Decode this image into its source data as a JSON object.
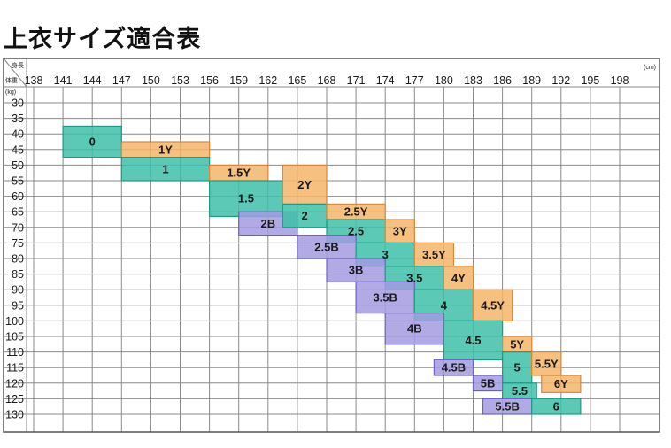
{
  "page": {
    "title": "上衣サイズ適合表"
  },
  "chart_data": {
    "type": "heatmap",
    "title": "上衣サイズ適合表",
    "x_axis": {
      "label_top": "身長",
      "unit": "(cm)",
      "ticks": [
        "138",
        "141",
        "144",
        "147",
        "150",
        "153",
        "156",
        "159",
        "162",
        "165",
        "168",
        "171",
        "174",
        "177",
        "180",
        "183",
        "186",
        "189",
        "192",
        "195",
        "198"
      ],
      "range": [
        138,
        198
      ]
    },
    "y_axis": {
      "label": "体重",
      "unit": "(kg)",
      "ticks": [
        "30",
        "35",
        "40",
        "45",
        "50",
        "55",
        "60",
        "65",
        "70",
        "75",
        "80",
        "85",
        "90",
        "95",
        "100",
        "105",
        "110",
        "115",
        "120",
        "125",
        "130"
      ],
      "range": [
        30,
        130
      ]
    },
    "grid": true,
    "colors": {
      "orange": "#f5b56a",
      "teal": "#3ec0a8",
      "purple": "#a39be0"
    },
    "regions": [
      {
        "label": "0",
        "color": "teal",
        "x": [
          141,
          147
        ],
        "y": [
          37.5,
          47.5
        ]
      },
      {
        "label": "1Y",
        "color": "orange",
        "x": [
          147,
          156
        ],
        "y": [
          42.5,
          47.5
        ]
      },
      {
        "label": "1",
        "color": "teal",
        "x": [
          147,
          156
        ],
        "y": [
          47.5,
          55
        ]
      },
      {
        "label": "1.5Y",
        "color": "orange",
        "x": [
          156,
          162
        ],
        "y": [
          50,
          55
        ]
      },
      {
        "label": "1.5",
        "color": "teal",
        "x": [
          156,
          163.5
        ],
        "y": [
          55,
          66.5
        ]
      },
      {
        "label": "2Y",
        "color": "orange",
        "x": [
          163.5,
          168
        ],
        "y": [
          50,
          62.5
        ]
      },
      {
        "label": "2B",
        "color": "purple",
        "x": [
          159,
          165
        ],
        "y": [
          65,
          72.5
        ]
      },
      {
        "label": "2",
        "color": "teal",
        "x": [
          163.5,
          168
        ],
        "y": [
          62.5,
          70
        ]
      },
      {
        "label": "2.5Y",
        "color": "orange",
        "x": [
          168,
          174
        ],
        "y": [
          62.5,
          67.5
        ]
      },
      {
        "label": "2.5",
        "color": "teal",
        "x": [
          168,
          174
        ],
        "y": [
          67.5,
          75
        ]
      },
      {
        "label": "2.5B",
        "color": "purple",
        "x": [
          165,
          171
        ],
        "y": [
          72.5,
          80
        ]
      },
      {
        "label": "3Y",
        "color": "orange",
        "x": [
          174,
          177
        ],
        "y": [
          67.5,
          75
        ]
      },
      {
        "label": "3",
        "color": "teal",
        "x": [
          171,
          177
        ],
        "y": [
          75,
          82.5
        ]
      },
      {
        "label": "3.5Y",
        "color": "orange",
        "x": [
          177,
          181
        ],
        "y": [
          75,
          82.5
        ]
      },
      {
        "label": "3B",
        "color": "purple",
        "x": [
          168,
          174
        ],
        "y": [
          80,
          87.5
        ]
      },
      {
        "label": "3.5",
        "color": "teal",
        "x": [
          174,
          180
        ],
        "y": [
          82.5,
          90
        ]
      },
      {
        "label": "4Y",
        "color": "orange",
        "x": [
          180,
          183
        ],
        "y": [
          82.5,
          90
        ]
      },
      {
        "label": "3.5B",
        "color": "purple",
        "x": [
          171,
          177
        ],
        "y": [
          87.5,
          97.5
        ]
      },
      {
        "label": "4",
        "color": "teal",
        "x": [
          177,
          183
        ],
        "y": [
          90,
          100
        ]
      },
      {
        "label": "4.5Y",
        "color": "orange",
        "x": [
          183,
          187
        ],
        "y": [
          90,
          100
        ]
      },
      {
        "label": "4B",
        "color": "purple",
        "x": [
          174,
          180
        ],
        "y": [
          97.5,
          107.5
        ]
      },
      {
        "label": "4.5",
        "color": "teal",
        "x": [
          180,
          186
        ],
        "y": [
          100,
          112.5
        ]
      },
      {
        "label": "5Y",
        "color": "orange",
        "x": [
          186,
          189
        ],
        "y": [
          105,
          110
        ]
      },
      {
        "label": "4.5B",
        "color": "purple",
        "x": [
          179,
          183
        ],
        "y": [
          112.5,
          117.5
        ]
      },
      {
        "label": "5",
        "color": "teal",
        "x": [
          186,
          189
        ],
        "y": [
          110,
          120
        ]
      },
      {
        "label": "5.5Y",
        "color": "orange",
        "x": [
          189,
          192
        ],
        "y": [
          110,
          117.5
        ]
      },
      {
        "label": "5B",
        "color": "purple",
        "x": [
          183,
          186
        ],
        "y": [
          117.5,
          122.5
        ]
      },
      {
        "label": "5.5",
        "color": "teal",
        "x": [
          186,
          189.5
        ],
        "y": [
          120,
          125
        ]
      },
      {
        "label": "6Y",
        "color": "orange",
        "x": [
          190,
          194
        ],
        "y": [
          117.5,
          123
        ]
      },
      {
        "label": "5.5B",
        "color": "purple",
        "x": [
          184,
          189
        ],
        "y": [
          125,
          130
        ]
      },
      {
        "label": "6",
        "color": "teal",
        "x": [
          189,
          194
        ],
        "y": [
          125,
          130
        ]
      }
    ]
  }
}
